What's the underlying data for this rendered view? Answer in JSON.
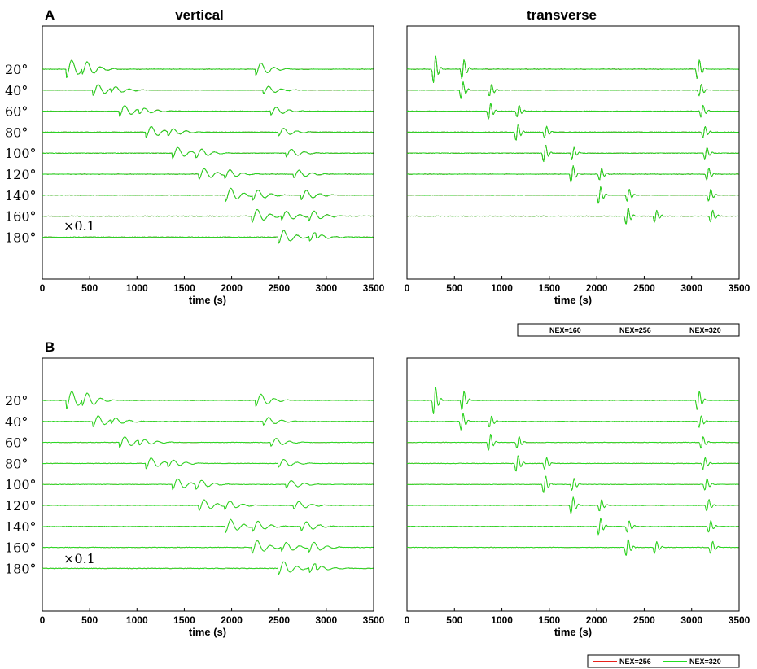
{
  "figure": {
    "panel_labels": [
      "A",
      "B"
    ],
    "column_titles": [
      "vertical",
      "transverse"
    ],
    "scale_note": "×0.1",
    "legend_A": [
      "NEX=160",
      "NEX=256",
      "NEX=320"
    ],
    "legend_B": [
      "NEX=256",
      "NEX=320"
    ]
  },
  "colors": {
    "nex160": "#000000",
    "nex256": "#e8201a",
    "nex320": "#22dd22"
  },
  "chart_data": [
    {
      "type": "line",
      "panel": "A",
      "component": "vertical",
      "title": "vertical",
      "xlabel": "time (s)",
      "xlim": [
        0,
        3500
      ],
      "xticks": [
        0,
        500,
        1000,
        1500,
        2000,
        2500,
        3000,
        3500
      ],
      "distances": [
        "20°",
        "40°",
        "60°",
        "80°",
        "100°",
        "120°",
        "140°",
        "160°",
        "180°"
      ],
      "series": [
        "NEX=160",
        "NEX=256",
        "NEX=320"
      ]
    },
    {
      "type": "line",
      "panel": "A",
      "component": "transverse",
      "title": "transverse",
      "xlabel": "time (s)",
      "xlim": [
        0,
        3500
      ],
      "xticks": [
        0,
        500,
        1000,
        1500,
        2000,
        2500,
        3000,
        3500
      ],
      "distances": [
        "20°",
        "40°",
        "60°",
        "80°",
        "100°",
        "120°",
        "140°",
        "160°"
      ],
      "series": [
        "NEX=160",
        "NEX=256",
        "NEX=320"
      ]
    },
    {
      "type": "line",
      "panel": "B",
      "component": "vertical",
      "xlabel": "time (s)",
      "xlim": [
        0,
        3500
      ],
      "xticks": [
        0,
        500,
        1000,
        1500,
        2000,
        2500,
        3000,
        3500
      ],
      "distances": [
        "20°",
        "40°",
        "60°",
        "80°",
        "100°",
        "120°",
        "140°",
        "160°",
        "180°"
      ],
      "series": [
        "NEX=256",
        "NEX=320"
      ]
    },
    {
      "type": "line",
      "panel": "B",
      "component": "transverse",
      "xlabel": "time (s)",
      "xlim": [
        0,
        3500
      ],
      "xticks": [
        0,
        500,
        1000,
        1500,
        2000,
        2500,
        3000,
        3500
      ],
      "distances": [
        "20°",
        "40°",
        "60°",
        "80°",
        "100°",
        "120°",
        "140°",
        "160°"
      ],
      "series": [
        "NEX=256",
        "NEX=320"
      ]
    }
  ]
}
